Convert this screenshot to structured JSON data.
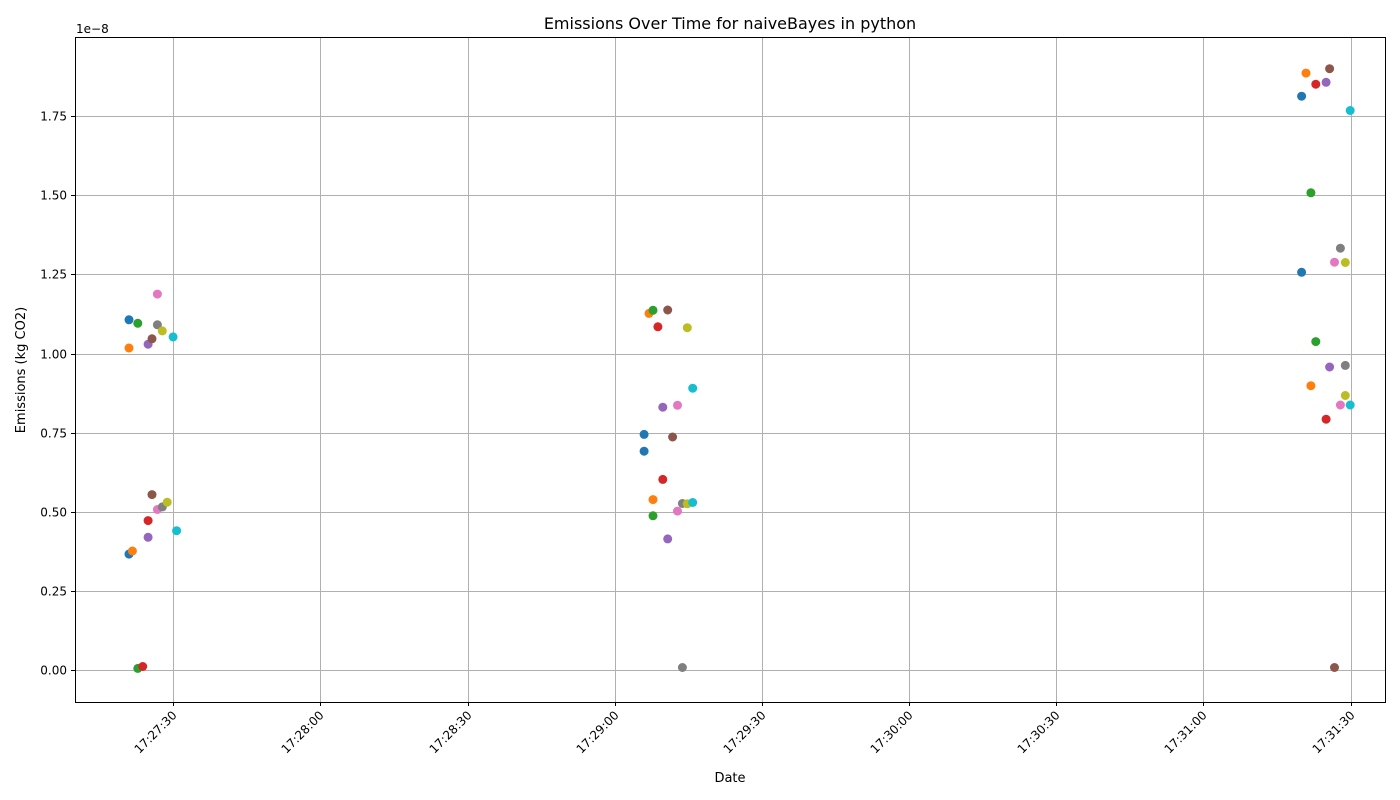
{
  "chart_data": {
    "type": "scatter",
    "title": "Emissions Over Time for naiveBayes in python",
    "xlabel": "Date",
    "ylabel": "Emissions (kg CO2)",
    "y_offset_label": "1e−8",
    "y_scale": 1e-08,
    "xlim": [
      "17:27:10",
      "17:31:37"
    ],
    "ylim": [
      -0.1,
      2.0
    ],
    "x_ticks": [
      "17:27:30",
      "17:28:00",
      "17:28:30",
      "17:29:00",
      "17:29:30",
      "17:30:00",
      "17:30:30",
      "17:31:00",
      "17:31:30"
    ],
    "y_ticks": [
      "0.00",
      "0.25",
      "0.50",
      "0.75",
      "1.00",
      "1.25",
      "1.50",
      "1.75"
    ],
    "y_tick_values": [
      0,
      0.25,
      0.5,
      0.75,
      1.0,
      1.25,
      1.5,
      1.75
    ],
    "grid": true,
    "legend": "none",
    "palette": [
      "#1f77b4",
      "#ff7f0e",
      "#2ca02c",
      "#d62728",
      "#9467bd",
      "#8c564b",
      "#e377c2",
      "#7f7f7f",
      "#bcbd22",
      "#17becf"
    ],
    "points": [
      {
        "x": "17:27:21.0",
        "y": 1.107,
        "color": "#1f77b4"
      },
      {
        "x": "17:27:21.0",
        "y": 0.367,
        "color": "#1f77b4"
      },
      {
        "x": "17:27:21.0",
        "y": 1.018,
        "color": "#ff7f0e"
      },
      {
        "x": "17:27:21.7",
        "y": 0.377,
        "color": "#ff7f0e"
      },
      {
        "x": "17:27:22.8",
        "y": 1.096,
        "color": "#2ca02c"
      },
      {
        "x": "17:27:22.8",
        "y": 0.006,
        "color": "#2ca02c"
      },
      {
        "x": "17:27:23.8",
        "y": 0.012,
        "color": "#d62728"
      },
      {
        "x": "17:27:24.9",
        "y": 0.473,
        "color": "#d62728"
      },
      {
        "x": "17:27:24.9",
        "y": 1.03,
        "color": "#9467bd"
      },
      {
        "x": "17:27:24.9",
        "y": 0.42,
        "color": "#9467bd"
      },
      {
        "x": "17:27:25.7",
        "y": 1.047,
        "color": "#8c564b"
      },
      {
        "x": "17:27:25.7",
        "y": 0.555,
        "color": "#8c564b"
      },
      {
        "x": "17:27:26.8",
        "y": 1.188,
        "color": "#e377c2"
      },
      {
        "x": "17:27:26.8",
        "y": 0.508,
        "color": "#e377c2"
      },
      {
        "x": "17:27:26.8",
        "y": 1.091,
        "color": "#7f7f7f"
      },
      {
        "x": "17:27:27.8",
        "y": 0.516,
        "color": "#7f7f7f"
      },
      {
        "x": "17:27:27.8",
        "y": 1.072,
        "color": "#bcbd22"
      },
      {
        "x": "17:27:28.8",
        "y": 0.531,
        "color": "#bcbd22"
      },
      {
        "x": "17:27:30.0",
        "y": 1.053,
        "color": "#17becf"
      },
      {
        "x": "17:27:30.7",
        "y": 0.441,
        "color": "#17becf"
      },
      {
        "x": "17:29:06.0",
        "y": 0.745,
        "color": "#1f77b4"
      },
      {
        "x": "17:29:06.0",
        "y": 0.692,
        "color": "#1f77b4"
      },
      {
        "x": "17:29:07.0",
        "y": 1.127,
        "color": "#ff7f0e"
      },
      {
        "x": "17:29:07.8",
        "y": 0.539,
        "color": "#ff7f0e"
      },
      {
        "x": "17:29:07.8",
        "y": 1.137,
        "color": "#2ca02c"
      },
      {
        "x": "17:29:07.8",
        "y": 0.488,
        "color": "#2ca02c"
      },
      {
        "x": "17:29:08.8",
        "y": 1.085,
        "color": "#d62728"
      },
      {
        "x": "17:29:09.8",
        "y": 0.603,
        "color": "#d62728"
      },
      {
        "x": "17:29:09.8",
        "y": 0.831,
        "color": "#9467bd"
      },
      {
        "x": "17:29:10.8",
        "y": 0.415,
        "color": "#9467bd"
      },
      {
        "x": "17:29:10.8",
        "y": 1.138,
        "color": "#8c564b"
      },
      {
        "x": "17:29:11.8",
        "y": 0.737,
        "color": "#8c564b"
      },
      {
        "x": "17:29:12.8",
        "y": 0.837,
        "color": "#e377c2"
      },
      {
        "x": "17:29:12.8",
        "y": 0.503,
        "color": "#e377c2"
      },
      {
        "x": "17:29:13.8",
        "y": 0.527,
        "color": "#7f7f7f"
      },
      {
        "x": "17:29:13.8",
        "y": 0.009,
        "color": "#7f7f7f"
      },
      {
        "x": "17:29:14.8",
        "y": 1.082,
        "color": "#bcbd22"
      },
      {
        "x": "17:29:14.8",
        "y": 0.526,
        "color": "#bcbd22"
      },
      {
        "x": "17:29:15.9",
        "y": 0.891,
        "color": "#17becf"
      },
      {
        "x": "17:29:15.9",
        "y": 0.53,
        "color": "#17becf"
      },
      {
        "x": "17:31:20.0",
        "y": 1.813,
        "color": "#1f77b4"
      },
      {
        "x": "17:31:20.0",
        "y": 1.257,
        "color": "#1f77b4"
      },
      {
        "x": "17:31:20.9",
        "y": 1.886,
        "color": "#ff7f0e"
      },
      {
        "x": "17:31:21.9",
        "y": 0.899,
        "color": "#ff7f0e"
      },
      {
        "x": "17:31:21.9",
        "y": 1.508,
        "color": "#2ca02c"
      },
      {
        "x": "17:31:22.9",
        "y": 1.038,
        "color": "#2ca02c"
      },
      {
        "x": "17:31:22.9",
        "y": 1.851,
        "color": "#d62728"
      },
      {
        "x": "17:31:25.0",
        "y": 0.793,
        "color": "#d62728"
      },
      {
        "x": "17:31:25.0",
        "y": 1.857,
        "color": "#9467bd"
      },
      {
        "x": "17:31:25.7",
        "y": 0.958,
        "color": "#9467bd"
      },
      {
        "x": "17:31:25.7",
        "y": 1.9,
        "color": "#8c564b"
      },
      {
        "x": "17:31:26.7",
        "y": 0.009,
        "color": "#8c564b"
      },
      {
        "x": "17:31:26.7",
        "y": 1.289,
        "color": "#e377c2"
      },
      {
        "x": "17:31:27.9",
        "y": 0.838,
        "color": "#e377c2"
      },
      {
        "x": "17:31:27.9",
        "y": 1.333,
        "color": "#7f7f7f"
      },
      {
        "x": "17:31:28.9",
        "y": 0.963,
        "color": "#7f7f7f"
      },
      {
        "x": "17:31:28.9",
        "y": 1.288,
        "color": "#bcbd22"
      },
      {
        "x": "17:31:28.9",
        "y": 0.868,
        "color": "#bcbd22"
      },
      {
        "x": "17:31:29.9",
        "y": 1.768,
        "color": "#17becf"
      },
      {
        "x": "17:31:29.9",
        "y": 0.838,
        "color": "#17becf"
      }
    ]
  }
}
